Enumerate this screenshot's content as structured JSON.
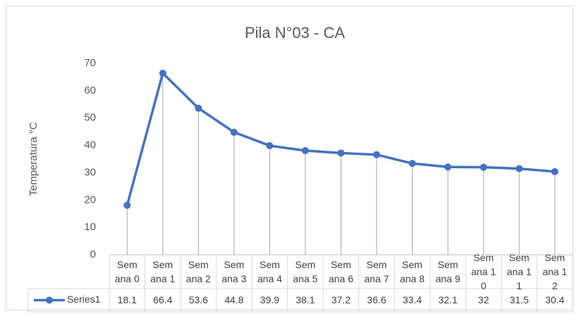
{
  "chart_data": {
    "type": "line",
    "title": "Pila N°03 - CA",
    "y_label": "Temperatura °C",
    "categories": [
      "Semana 0",
      "Semana 1",
      "Semana 2",
      "Semana 3",
      "Semana 4",
      "Semana 5",
      "Semana 6",
      "Semana 7",
      "Semana 8",
      "Semana 9",
      "Semana 10",
      "Semana 11",
      "Semana 12"
    ],
    "series": [
      {
        "name": "Series1",
        "color": "#4472c4",
        "values": [
          18.1,
          66.4,
          53.6,
          44.8,
          39.9,
          38.1,
          37.2,
          36.6,
          33.4,
          32.1,
          32,
          31.5,
          30.4
        ]
      }
    ],
    "ylim": [
      0,
      70
    ],
    "yticks": [
      0,
      10,
      20,
      30,
      40,
      50,
      60,
      70
    ],
    "grid": false,
    "drop_lines": true,
    "data_table": true
  }
}
